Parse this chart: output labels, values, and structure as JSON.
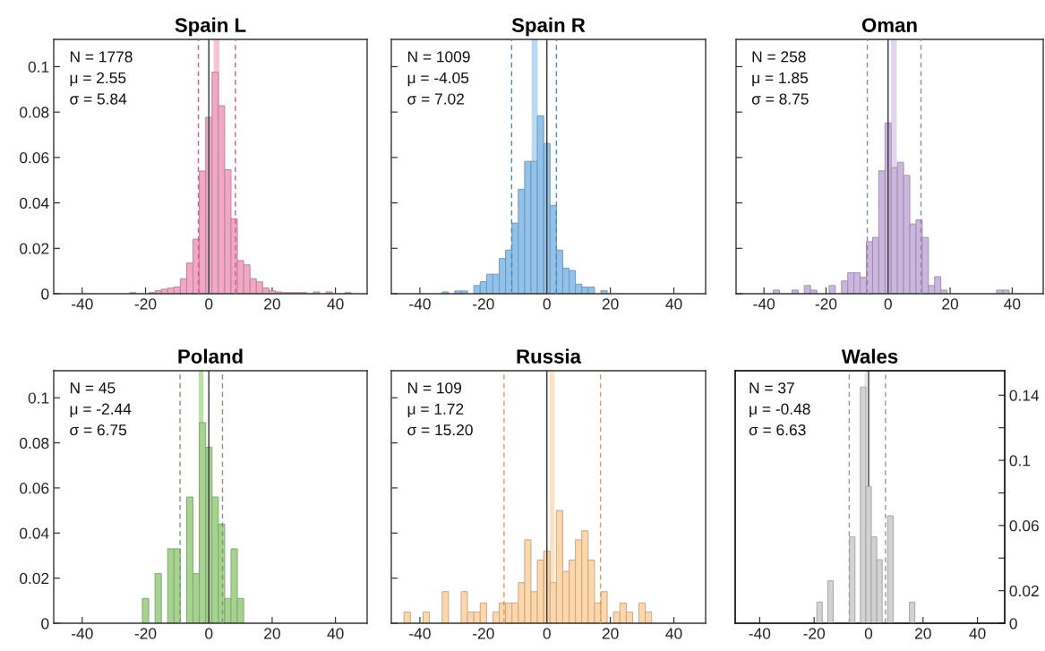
{
  "chart_data": [
    {
      "type": "histogram",
      "title": "Spain L",
      "color": "#f0a8c4",
      "annotations": [
        "N = 1778",
        "μ = 2.55",
        "σ = 5.84"
      ],
      "bins": [
        -25,
        -23,
        -21,
        -19,
        -17,
        -15,
        -13,
        -11,
        -9,
        -7,
        -5,
        -3,
        -1,
        1,
        3,
        5,
        7,
        9,
        11,
        13,
        15,
        17,
        19,
        21,
        23,
        25,
        27,
        29,
        31,
        33,
        35,
        37,
        39,
        41,
        43,
        45
      ],
      "values": [
        0.0005,
        0,
        0,
        0.0005,
        0.0013,
        0.002,
        0.0025,
        0.003,
        0.0066,
        0.0135,
        0.024,
        0.054,
        0.0777,
        0.0976,
        0.0828,
        0.0546,
        0.033,
        0.0146,
        0.0127,
        0.0066,
        0.0052,
        0.0025,
        0.0013,
        0.0008,
        0.0005,
        0.0005,
        0.0005,
        0.0005,
        0,
        0.0008,
        0,
        0.0008,
        0,
        0,
        0.0005
      ],
      "xlim": [
        -49,
        50
      ],
      "xticks": [
        -40,
        -20,
        0,
        20,
        40
      ],
      "ylim": [
        0,
        0.112
      ],
      "yticks": [
        0,
        0.02,
        0.04,
        0.06,
        0.08,
        0.1
      ],
      "ref_lines": [
        {
          "axis": "x",
          "value": 0,
          "color": "#333333",
          "line_style": "solid"
        },
        {
          "axis": "x",
          "value": -3.3,
          "color": "#e0558a",
          "line_style": "dashed"
        },
        {
          "axis": "x",
          "value": 8.4,
          "color": "#e0558a",
          "line_style": "dashed"
        }
      ],
      "bands": [
        {
          "axis": "x",
          "from": 1.5,
          "to": 3.3,
          "color": "#f6c3d7"
        }
      ]
    },
    {
      "type": "histogram",
      "title": "Spain R",
      "color": "#90c2ea",
      "annotations": [
        "N = 1009",
        "μ = -4.05",
        "σ = 7.02"
      ],
      "bins": [
        -33,
        -31,
        -29,
        -27,
        -25,
        -23,
        -21,
        -19,
        -17,
        -15,
        -13,
        -11,
        -9,
        -7,
        -5,
        -3,
        -1,
        1,
        3,
        5,
        7,
        9,
        11,
        13,
        15,
        17,
        19
      ],
      "values": [
        0.0008,
        0,
        0.0012,
        0.0012,
        0,
        0.0036,
        0.0053,
        0.0086,
        0.0086,
        0.0155,
        0.0192,
        0.0311,
        0.046,
        0.0583,
        0.0583,
        0.0784,
        0.0662,
        0.0389,
        0.0192,
        0.0113,
        0.0102,
        0.0042,
        0.0029,
        0.0029,
        0,
        0.0013
      ],
      "xlim": [
        -49,
        50
      ],
      "xticks": [
        -40,
        -20,
        0,
        20,
        40
      ],
      "ylim": [
        0,
        0.112
      ],
      "yticks": [
        0,
        0.02,
        0.04,
        0.06,
        0.08,
        0.1
      ],
      "tick_labels": "x",
      "ref_lines": [
        {
          "axis": "x",
          "value": 0,
          "color": "#333333",
          "line_style": "solid"
        },
        {
          "axis": "x",
          "value": -11.1,
          "color": "#4a86c0",
          "line_style": "dashed"
        },
        {
          "axis": "x",
          "value": 3.0,
          "color": "#4a86c0",
          "line_style": "dashed"
        }
      ],
      "bands": [
        {
          "axis": "x",
          "from": -4.8,
          "to": -2.9,
          "color": "#b8daf2"
        }
      ]
    },
    {
      "type": "histogram",
      "title": "Oman",
      "color": "#cbb6de",
      "annotations": [
        "N = 258",
        "μ = 1.85",
        "σ = 8.75"
      ],
      "bins": [
        -37,
        -35,
        -33,
        -31,
        -29,
        -27,
        -25,
        -23,
        -21,
        -19,
        -17,
        -15,
        -13,
        -11,
        -9,
        -7,
        -5,
        -3,
        -1,
        1,
        3,
        5,
        7,
        9,
        11,
        13,
        15,
        17,
        19,
        21,
        23,
        25,
        27,
        29,
        31,
        33,
        35,
        37,
        39
      ],
      "values": [
        0.0016,
        0,
        0,
        0.0016,
        0,
        0.0036,
        0.0016,
        0,
        0,
        0.0036,
        0,
        0.0056,
        0.0092,
        0.0092,
        0.0072,
        0.0229,
        0.0248,
        0.0541,
        0.0752,
        0.0555,
        0.0579,
        0.0521,
        0.0307,
        0.0325,
        0.0248,
        0.0036,
        0.0075,
        0.0016,
        0,
        0,
        0,
        0,
        0,
        0,
        0,
        0,
        0.0016,
        0.0016
      ],
      "xlim": [
        -49,
        50
      ],
      "xticks": [
        -40,
        -20,
        0,
        20,
        40
      ],
      "ylim": [
        0,
        0.112
      ],
      "yticks": [
        0,
        0.02,
        0.04,
        0.06,
        0.08,
        0.1
      ],
      "tick_labels": "x",
      "ref_lines": [
        {
          "axis": "x",
          "value": 0,
          "color": "#333333",
          "line_style": "solid"
        },
        {
          "axis": "x",
          "value": -6.7,
          "color": "#9585b5",
          "line_style": "dashed"
        },
        {
          "axis": "x",
          "value": 10.6,
          "color": "#9585b5",
          "line_style": "dashed"
        }
      ],
      "bands": [
        {
          "axis": "x",
          "from": 0.9,
          "to": 2.8,
          "color": "#e3d6ec"
        }
      ]
    },
    {
      "type": "histogram",
      "title": "Poland",
      "color": "#a6d490",
      "annotations": [
        "N = 45",
        "μ = -2.44",
        "σ = 6.75"
      ],
      "bins": [
        -21,
        -19,
        -17,
        -15,
        -13,
        -11,
        -9,
        -7,
        -5,
        -3,
        -1,
        1,
        3,
        5,
        7,
        9,
        11
      ],
      "values": [
        0.011,
        0,
        0.022,
        0,
        0.033,
        0.033,
        0,
        0.056,
        0.022,
        0.089,
        0.078,
        0.056,
        0.044,
        0.011,
        0.033,
        0.011
      ],
      "xlim": [
        -49,
        50
      ],
      "xticks": [
        -40,
        -20,
        0,
        20,
        40
      ],
      "ylim": [
        0,
        0.112
      ],
      "yticks": [
        0,
        0.02,
        0.04,
        0.06,
        0.08,
        0.1
      ],
      "ref_lines": [
        {
          "axis": "x",
          "value": 0,
          "color": "#333333",
          "line_style": "solid"
        },
        {
          "axis": "x",
          "value": -9.1,
          "color": "#7a9a6a",
          "line_style": "dashed"
        },
        {
          "axis": "x",
          "value": 4.3,
          "color": "#7a9a6a",
          "line_style": "dashed"
        }
      ],
      "bands": [
        {
          "axis": "x",
          "from": -3.2,
          "to": -1.7,
          "color": "#b9e2a6"
        }
      ]
    },
    {
      "type": "histogram",
      "title": "Russia",
      "color": "#fdd6ab",
      "annotations": [
        "N = 109",
        "μ = 1.72",
        "σ = 15.20"
      ],
      "bins": [
        -45,
        -43,
        -41,
        -39,
        -37,
        -35,
        -33,
        -31,
        -29,
        -27,
        -25,
        -23,
        -21,
        -19,
        -17,
        -15,
        -13,
        -11,
        -9,
        -7,
        -5,
        -3,
        -1,
        1,
        3,
        5,
        7,
        9,
        11,
        13,
        15,
        17,
        19,
        21,
        23,
        25,
        27,
        29,
        31,
        33
      ],
      "values": [
        0.005,
        0,
        0,
        0.005,
        0,
        0,
        0.014,
        0,
        0,
        0.014,
        0.005,
        0.005,
        0.009,
        0,
        0.005,
        0.009,
        0.009,
        0.009,
        0.018,
        0.037,
        0.014,
        0.028,
        0.032,
        0.018,
        0.05,
        0.023,
        0.028,
        0.037,
        0.041,
        0.028,
        0.009,
        0.014,
        0,
        0.005,
        0.009,
        0.005,
        0,
        0.009,
        0.005
      ],
      "xlim": [
        -49,
        50
      ],
      "xticks": [
        -40,
        -20,
        0,
        20,
        40
      ],
      "ylim": [
        0,
        0.112
      ],
      "yticks": [
        0,
        0.02,
        0.04,
        0.06,
        0.08,
        0.1
      ],
      "tick_labels": "x",
      "ref_lines": [
        {
          "axis": "x",
          "value": 0,
          "color": "#333333",
          "line_style": "solid"
        },
        {
          "axis": "x",
          "value": -13.5,
          "color": "#e09a5a",
          "line_style": "dashed"
        },
        {
          "axis": "x",
          "value": 16.9,
          "color": "#e09a5a",
          "line_style": "dashed"
        }
      ],
      "bands": [
        {
          "axis": "x",
          "from": 0.9,
          "to": 2.5,
          "color": "#fde2c6"
        }
      ]
    },
    {
      "type": "histogram",
      "title": "Wales",
      "color": "#d2d2d2",
      "annotations": [
        "N = 37",
        "μ = -0.48",
        "σ = 6.63"
      ],
      "bins": [
        -19,
        -17,
        -15,
        -13,
        -11,
        -9,
        -7,
        -5,
        -3,
        -1,
        1,
        3,
        5,
        7,
        9,
        11,
        13,
        15,
        17
      ],
      "series": [
        {
          "axis": "y2",
          "values": [
            0.013,
            0,
            0.026,
            0,
            0,
            0,
            0.053,
            0,
            0.145,
            0.084,
            0.053,
            0.039,
            0,
            0.066,
            0,
            0,
            0,
            0.013
          ]
        }
      ],
      "xlim": [
        -49,
        50
      ],
      "xticks": [
        -40,
        -20,
        0,
        20,
        40
      ],
      "y2lim": [
        0,
        0.155
      ],
      "y2ticks": [
        0,
        0.02,
        {
          "value": 0.04,
          "label": null
        },
        0.06,
        {
          "value": 0.08,
          "label": null
        },
        0.1,
        {
          "value": 0.12,
          "label": null
        },
        0.14
      ],
      "ref_lines": [
        {
          "axis": "x",
          "value": 0,
          "color": "#333333",
          "line_style": "solid"
        },
        {
          "axis": "x",
          "value": -7.1,
          "color": "#999999",
          "line_style": "dashed"
        },
        {
          "axis": "x",
          "value": 6.2,
          "color": "#999999",
          "line_style": "dashed"
        }
      ],
      "bands": [
        {
          "axis": "x",
          "from": -1.5,
          "to": -0.4,
          "color": "#e6e6e6"
        }
      ]
    }
  ]
}
